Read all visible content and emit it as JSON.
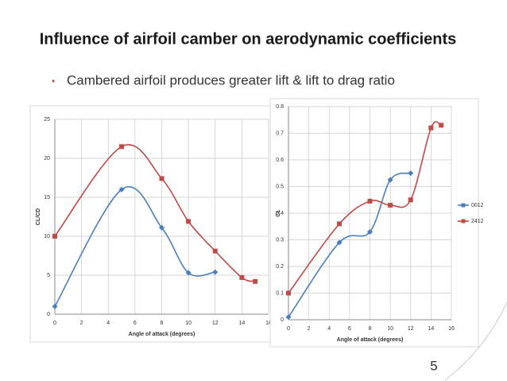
{
  "title": "Influence of airfoil camber on aerodynamic coefficients",
  "bullet": "Cambered airfoil produces greater lift & lift to drag ratio",
  "page_number": "5",
  "chart_data": [
    {
      "type": "line",
      "xlabel": "Angle of attack (degrees)",
      "ylabel": "CL/CD",
      "xlim": [
        0,
        16
      ],
      "xticks": [
        0,
        2,
        4,
        6,
        8,
        10,
        12,
        14,
        16
      ],
      "ylim": [
        0,
        25
      ],
      "yticks": [
        0,
        5,
        10,
        15,
        20,
        25
      ],
      "grid": true,
      "legend": false,
      "series": [
        {
          "color": "#4a7ebb",
          "marker": "diamond",
          "x": [
            0,
            5,
            8,
            10,
            12
          ],
          "values": [
            1,
            16,
            11.1,
            5.3,
            5.4
          ]
        },
        {
          "color": "#be4b48",
          "marker": "square",
          "x": [
            0,
            5,
            8,
            10,
            12,
            14,
            15
          ],
          "values": [
            10,
            21.5,
            17.4,
            11.9,
            8.1,
            4.7,
            4.2
          ]
        }
      ]
    },
    {
      "type": "line",
      "xlabel": "Angle of attack (degrees)",
      "ylabel": "CL",
      "xlim": [
        0,
        16
      ],
      "xticks": [
        0,
        2,
        4,
        6,
        8,
        10,
        12,
        14,
        16
      ],
      "ylim": [
        0,
        0.8
      ],
      "yticks": [
        0,
        0.1,
        0.2,
        0.3,
        0.4,
        0.5,
        0.6,
        0.7,
        0.8
      ],
      "grid": true,
      "legend": "right",
      "series": [
        {
          "name": "0012",
          "color": "#4a7ebb",
          "marker": "diamond",
          "x": [
            0,
            5,
            8,
            10,
            12
          ],
          "values": [
            0.01,
            0.29,
            0.33,
            0.525,
            0.55
          ]
        },
        {
          "name": "2412",
          "color": "#be4b48",
          "marker": "square",
          "x": [
            0,
            5,
            8,
            10,
            12,
            14,
            15
          ],
          "values": [
            0.1,
            0.36,
            0.445,
            0.43,
            0.45,
            0.72,
            0.73
          ]
        }
      ]
    }
  ]
}
